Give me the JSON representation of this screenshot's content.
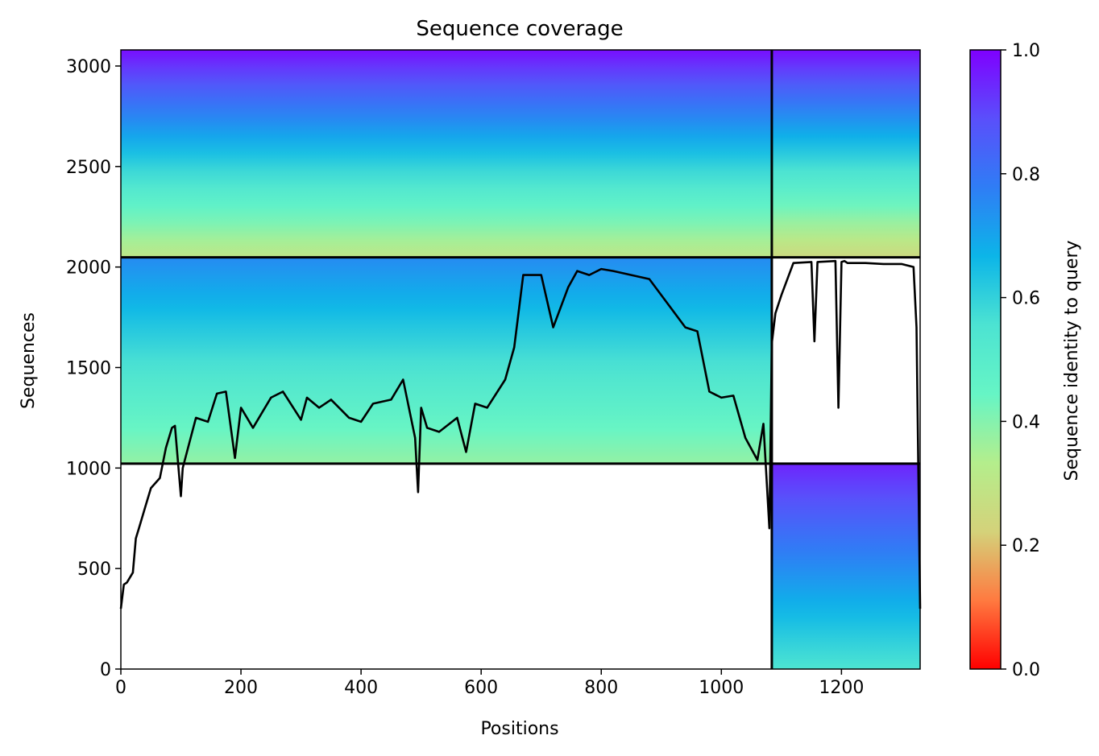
{
  "chart_data": {
    "type": "heatmap",
    "title": "Sequence coverage",
    "xlabel": "Positions",
    "ylabel": "Sequences",
    "xlim": [
      0,
      1331
    ],
    "ylim": [
      0,
      3080
    ],
    "xticks": [
      0,
      200,
      400,
      600,
      800,
      1000,
      1200
    ],
    "yticks": [
      0,
      500,
      1000,
      1500,
      2000,
      2500,
      3000
    ],
    "colorbar": {
      "label": "Sequence identity to query",
      "range": [
        0,
        1
      ],
      "ticks": [
        "0.0",
        "0.2",
        "0.4",
        "0.6",
        "0.8",
        "1.0"
      ],
      "colormap": "rainbow",
      "stops": [
        "#ff0000",
        "#ff7a40",
        "#d4d27a",
        "#b4ee8c",
        "#66f5c5",
        "#4ce3d2",
        "#0cb5e8",
        "#2f7df5",
        "#5a4ffb",
        "#7f00ff"
      ]
    },
    "blocks": [
      {
        "name": "block-1",
        "x": [
          0,
          1084
        ],
        "y": [
          1022,
          2048
        ],
        "identity_bottom": 0.38,
        "identity_top": 0.75
      },
      {
        "name": "block-2",
        "x": [
          1084,
          1331
        ],
        "y": [
          0,
          1022
        ],
        "identity_bottom": 0.55,
        "identity_top": 0.95
      },
      {
        "name": "block-3",
        "x": [
          0,
          1084
        ],
        "y": [
          2048,
          3080
        ],
        "identity_bottom": 0.3,
        "identity_top": 0.98
      },
      {
        "name": "block-4",
        "x": [
          1084,
          1331
        ],
        "y": [
          2048,
          3080
        ],
        "identity_bottom": 0.25,
        "identity_top": 0.98
      }
    ],
    "separators": {
      "horizontal": [
        1022,
        2048
      ],
      "vertical": [
        1084
      ]
    },
    "coverage_line": {
      "x": [
        0,
        5,
        10,
        20,
        25,
        30,
        40,
        50,
        65,
        75,
        85,
        90,
        100,
        103,
        110,
        125,
        145,
        160,
        175,
        190,
        200,
        220,
        250,
        270,
        300,
        310,
        330,
        350,
        380,
        400,
        420,
        450,
        470,
        490,
        495,
        500,
        510,
        530,
        560,
        575,
        590,
        610,
        640,
        655,
        670,
        700,
        720,
        745,
        760,
        780,
        800,
        820,
        850,
        880,
        900,
        940,
        960,
        980,
        1000,
        1020,
        1040,
        1060,
        1070,
        1080,
        1084,
        1090,
        1100,
        1120,
        1150,
        1155,
        1160,
        1190,
        1195,
        1200,
        1205,
        1210,
        1240,
        1270,
        1300,
        1320,
        1325,
        1331
      ],
      "y": [
        300,
        420,
        430,
        480,
        650,
        700,
        800,
        900,
        950,
        1100,
        1200,
        1210,
        860,
        1000,
        1080,
        1250,
        1230,
        1370,
        1380,
        1050,
        1300,
        1200,
        1350,
        1380,
        1240,
        1350,
        1300,
        1340,
        1250,
        1230,
        1320,
        1340,
        1440,
        1150,
        880,
        1300,
        1200,
        1180,
        1250,
        1080,
        1320,
        1300,
        1440,
        1600,
        1960,
        1960,
        1700,
        1900,
        1980,
        1960,
        1990,
        1980,
        1960,
        1940,
        1860,
        1700,
        1680,
        1380,
        1350,
        1360,
        1150,
        1040,
        1220,
        700,
        1620,
        1770,
        1860,
        2020,
        2025,
        1630,
        2025,
        2030,
        1300,
        2025,
        2030,
        2020,
        2020,
        2015,
        2015,
        2000,
        1700,
        300
      ]
    }
  }
}
